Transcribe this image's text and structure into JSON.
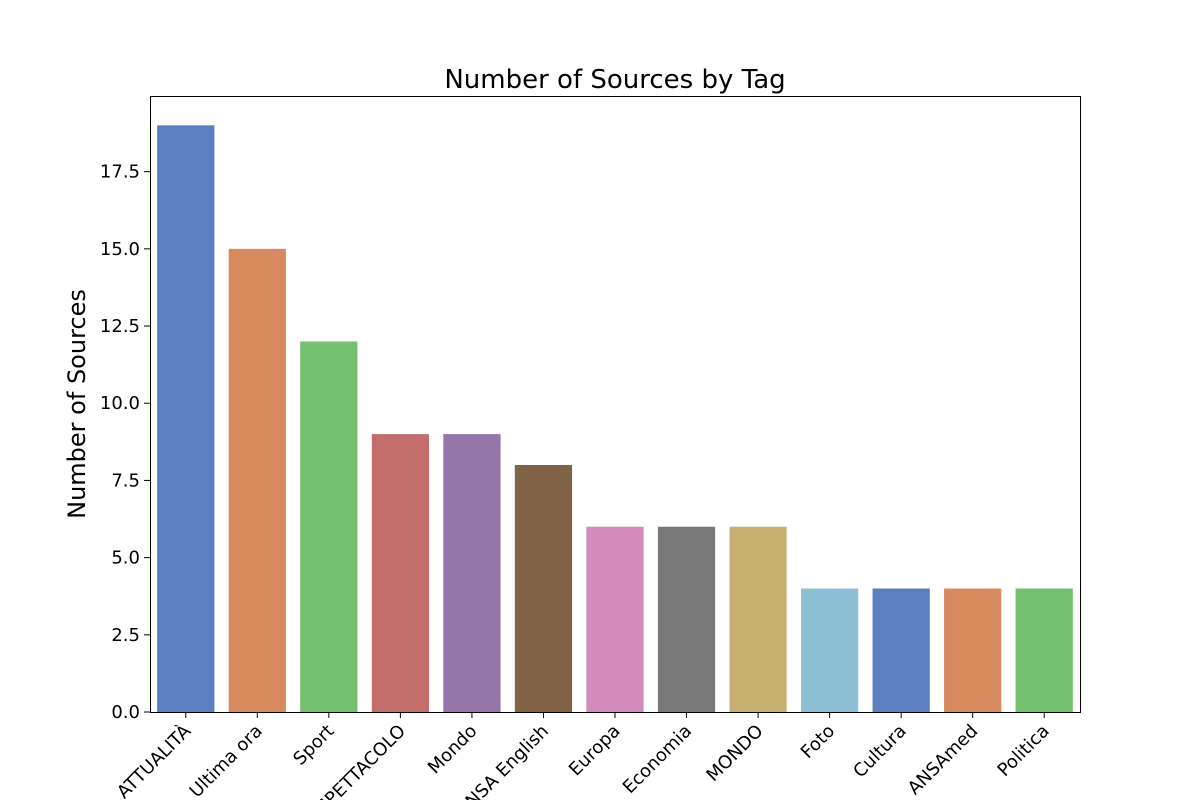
{
  "chart_data": {
    "type": "bar",
    "title": "Number of Sources by Tag",
    "xlabel": "",
    "ylabel": "Number of Sources",
    "categories": [
      "ATTUALITÀ",
      "Ultima ora",
      "Sport",
      "SPETTACOLO",
      "Mondo",
      "ANSA English",
      "Europa",
      "Economia",
      "MONDO",
      "Foto",
      "Cultura",
      "ANSAmed",
      "Politica"
    ],
    "values": [
      19,
      15,
      12,
      9,
      9,
      8,
      6,
      6,
      6,
      4,
      4,
      4,
      4
    ],
    "colors": [
      "#5a7ebf",
      "#d78a5e",
      "#73c06e",
      "#c46e6c",
      "#9575aa",
      "#816246",
      "#d38abc",
      "#787878",
      "#c5b072",
      "#8ec0d5",
      "#5a7ebf",
      "#d78a5e",
      "#73c06e"
    ],
    "ylim": [
      0,
      19.95
    ],
    "yticks": [
      "0.0",
      "2.5",
      "5.0",
      "7.5",
      "10.0",
      "12.5",
      "15.0",
      "17.5"
    ],
    "xtick_rotation": 45,
    "grid": false,
    "legend": "none"
  }
}
